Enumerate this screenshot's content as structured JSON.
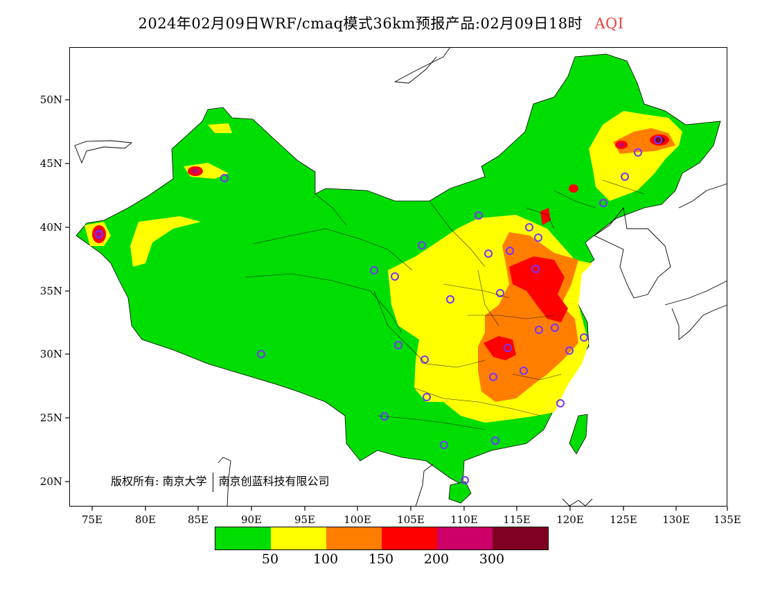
{
  "title": {
    "main": "2024年02月09日WRF/cmaq模式36km预报产品:02月09日18时",
    "variable": "AQI"
  },
  "axes": {
    "x_ticks": [
      "75E",
      "80E",
      "85E",
      "90E",
      "95E",
      "100E",
      "105E",
      "110E",
      "115E",
      "120E",
      "125E",
      "130E",
      "135E"
    ],
    "y_ticks": [
      "50N",
      "45N",
      "40N",
      "35N",
      "30N",
      "25N",
      "20N"
    ]
  },
  "copyright": {
    "owner_label": "版权所有:",
    "org1": "南京大学",
    "org2": "南京创蓝科技有限公司"
  },
  "legend": {
    "colors": [
      "#00dd00",
      "#ffff00",
      "#ff7e00",
      "#ff0000",
      "#cc0066",
      "#7e0023"
    ],
    "thresholds": [
      "50",
      "100",
      "150",
      "200",
      "300"
    ]
  }
}
